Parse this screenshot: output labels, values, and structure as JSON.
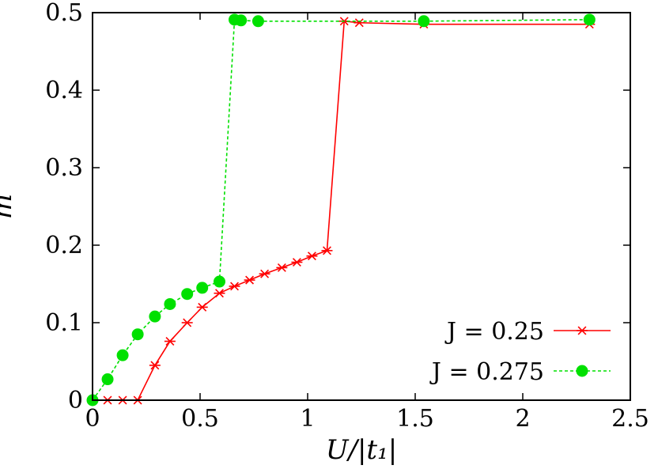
{
  "chart_data": {
    "type": "line",
    "title": "",
    "xlabel": "U/|t₁|",
    "ylabel": "m",
    "xlim": [
      0,
      2.5
    ],
    "ylim": [
      0,
      0.5
    ],
    "xticks": [
      0,
      0.5,
      1,
      1.5,
      2,
      2.5
    ],
    "xtick_labels": [
      "0",
      "0.5",
      "1",
      "1.5",
      "2",
      "2.5"
    ],
    "yticks": [
      0,
      0.1,
      0.2,
      0.3,
      0.4,
      0.5
    ],
    "ytick_labels": [
      "0",
      "0.1",
      "0.2",
      "0.3",
      "0.4",
      "0.5"
    ],
    "grid": false,
    "legend_position": "bottom-right",
    "series": [
      {
        "name": "J = 0.25",
        "color": "#ff0000",
        "marker": "asterisk",
        "line_style": "solid",
        "x": [
          0.0,
          0.07,
          0.14,
          0.21,
          0.29,
          0.36,
          0.44,
          0.51,
          0.59,
          0.66,
          0.73,
          0.8,
          0.88,
          0.95,
          1.02,
          1.09,
          1.17,
          1.24,
          1.54,
          2.31
        ],
        "y": [
          0.0,
          0.0,
          0.0,
          0.0,
          0.045,
          0.076,
          0.1,
          0.12,
          0.138,
          0.147,
          0.155,
          0.163,
          0.171,
          0.178,
          0.186,
          0.193,
          0.489,
          0.487,
          0.485,
          0.485
        ]
      },
      {
        "name": "J = 0.275",
        "color": "#00e000",
        "marker": "filled-circle",
        "line_style": "dashed",
        "x": [
          0.0,
          0.07,
          0.14,
          0.21,
          0.29,
          0.36,
          0.44,
          0.51,
          0.59,
          0.66,
          0.69,
          0.77,
          1.54,
          2.31
        ],
        "y": [
          0.0,
          0.027,
          0.058,
          0.085,
          0.108,
          0.124,
          0.137,
          0.145,
          0.153,
          0.491,
          0.49,
          0.489,
          0.489,
          0.491
        ]
      }
    ]
  }
}
